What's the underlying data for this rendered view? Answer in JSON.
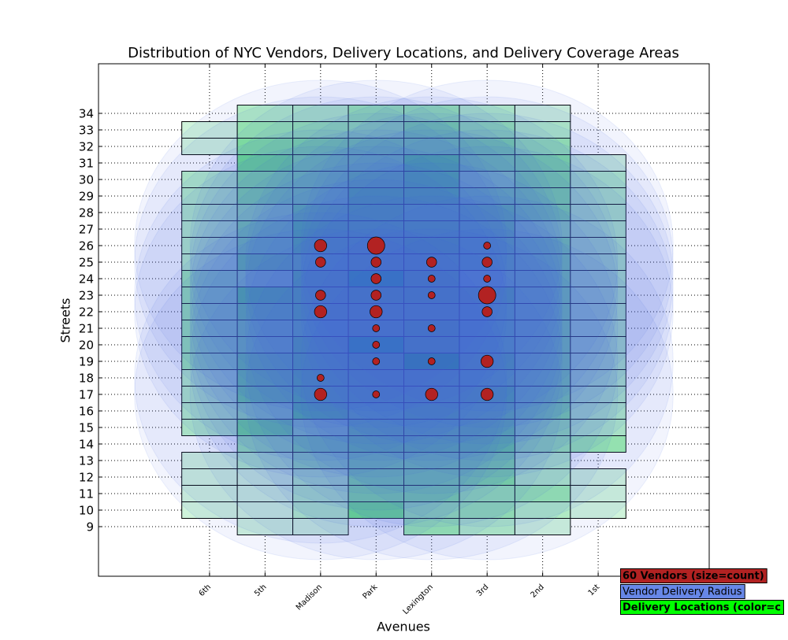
{
  "chart_data": {
    "type": "heatmap",
    "title": "Distribution of NYC Vendors, Delivery Locations, and Delivery Coverage Areas",
    "x_label": "Avenues",
    "y_label": "Streets",
    "categories": [
      "6th",
      "5th",
      "Madison",
      "Park",
      "Lexington",
      "3rd",
      "2nd",
      "1st"
    ],
    "ylim": [
      6,
      37
    ],
    "yticks": [
      9,
      10,
      11,
      12,
      13,
      14,
      15,
      16,
      17,
      18,
      19,
      20,
      21,
      22,
      23,
      24,
      25,
      26,
      27,
      28,
      29,
      30,
      31,
      32,
      33,
      34
    ],
    "grid": true,
    "delivery_locations": {
      "name": "Delivery Locations (color=c",
      "color": "#00ff00",
      "streets": [
        [
          10,
          11,
          12,
          13,
          15,
          16,
          17,
          18,
          19,
          20,
          21,
          22,
          23,
          24,
          25,
          26,
          27,
          28,
          29,
          30,
          32,
          33
        ],
        [
          9,
          10,
          11,
          12,
          13,
          14,
          15,
          16,
          17,
          18,
          19,
          20,
          21,
          22,
          23,
          24,
          25,
          26,
          27,
          28,
          29,
          30,
          31,
          32,
          33,
          34
        ],
        [
          9,
          10,
          11,
          12,
          13,
          14,
          15,
          16,
          17,
          18,
          19,
          20,
          21,
          22,
          23,
          24,
          25,
          26,
          27,
          28,
          29,
          30,
          31,
          32,
          33,
          34
        ],
        [
          10,
          11,
          12,
          13,
          14,
          15,
          16,
          17,
          18,
          19,
          20,
          21,
          22,
          23,
          24,
          25,
          26,
          27,
          28,
          29,
          30,
          31,
          32,
          33,
          34
        ],
        [
          9,
          10,
          11,
          12,
          13,
          14,
          15,
          16,
          17,
          18,
          19,
          20,
          21,
          22,
          23,
          24,
          25,
          26,
          27,
          28,
          29,
          30,
          31,
          32,
          33,
          34
        ],
        [
          9,
          10,
          11,
          12,
          13,
          14,
          15,
          16,
          17,
          18,
          19,
          20,
          21,
          22,
          23,
          24,
          25,
          26,
          27,
          28,
          29,
          30,
          31,
          32,
          33,
          34
        ],
        [
          9,
          10,
          11,
          12,
          13,
          14,
          15,
          16,
          17,
          18,
          19,
          20,
          21,
          22,
          23,
          24,
          25,
          26,
          27,
          28,
          29,
          30,
          31,
          32,
          33,
          34
        ],
        [
          10,
          11,
          12,
          14,
          15,
          16,
          17,
          18,
          19,
          20,
          21,
          22,
          23,
          24,
          25,
          26,
          27,
          28,
          29,
          30,
          31
        ]
      ],
      "values": [
        [
          1,
          1,
          1,
          1,
          2,
          2,
          2,
          2,
          3,
          3,
          3,
          3,
          3,
          3,
          2,
          2,
          2,
          2,
          2,
          2,
          1,
          1
        ],
        [
          1,
          1,
          1,
          1,
          2,
          3,
          5,
          3,
          5,
          5,
          5,
          4,
          4,
          5,
          6,
          3,
          5,
          4,
          4,
          3,
          4,
          4,
          5,
          4,
          3,
          2
        ],
        [
          1,
          2,
          2,
          2,
          3,
          4,
          3,
          6,
          6,
          6,
          6,
          6,
          5,
          6,
          6,
          6,
          5,
          6,
          6,
          5,
          4,
          4,
          4,
          4,
          3,
          2
        ],
        [
          5,
          4,
          4,
          4,
          5,
          5,
          5,
          6,
          6,
          7,
          8,
          6,
          6,
          7,
          8,
          6,
          6,
          6,
          6,
          6,
          5,
          4,
          4,
          3,
          3
        ],
        [
          3,
          3,
          4,
          4,
          4,
          5,
          5,
          6,
          6,
          6,
          10,
          7,
          7,
          6,
          7,
          7,
          6,
          7,
          6,
          5,
          6,
          6,
          6,
          4,
          4,
          3
        ],
        [
          2,
          3,
          3,
          4,
          4,
          5,
          5,
          5,
          6,
          5,
          6,
          5,
          5,
          5,
          6,
          4,
          5,
          5,
          5,
          5,
          4,
          3,
          4,
          4,
          3,
          2
        ],
        [
          1,
          2,
          3,
          2,
          2,
          3,
          3,
          4,
          4,
          4,
          4,
          4,
          4,
          4,
          4,
          4,
          4,
          4,
          3,
          4,
          4,
          4,
          4,
          3,
          2,
          1
        ],
        [
          1,
          1,
          1,
          3,
          2,
          2,
          2,
          2,
          2,
          2,
          2,
          2,
          2,
          2,
          2,
          2,
          2,
          2,
          2,
          2,
          1
        ]
      ]
    },
    "delivery_radius": {
      "name": "Vendor Delivery Radius",
      "color": "#4169e1",
      "radius_x": 3.35,
      "radius_y": 10
    },
    "vendors": {
      "name": "60 Vendors (size=count)",
      "color": "#b22222",
      "x": [
        "Madison",
        "Park",
        "3rd",
        "Madison",
        "Park",
        "Lexington",
        "3rd",
        "Park",
        "Lexington",
        "3rd",
        "Madison",
        "Park",
        "Lexington",
        "3rd",
        "Madison",
        "Park",
        "3rd",
        "Park",
        "Lexington",
        "Park",
        "Park",
        "Lexington",
        "3rd",
        "Madison",
        "Madison",
        "Park",
        "Lexington",
        "3rd"
      ],
      "y": [
        26,
        26,
        26,
        25,
        25,
        25,
        25,
        24,
        24,
        24,
        23,
        23,
        23,
        23,
        22,
        22,
        22,
        21,
        21,
        20,
        19,
        19,
        19,
        18,
        17,
        17,
        17,
        17
      ],
      "sizes": [
        3,
        6,
        1,
        2,
        2,
        2,
        2,
        2,
        1,
        1,
        2,
        2,
        1,
        6,
        3,
        3,
        2,
        1,
        1,
        1,
        1,
        1,
        3,
        1,
        3,
        1,
        3,
        3
      ]
    }
  }
}
